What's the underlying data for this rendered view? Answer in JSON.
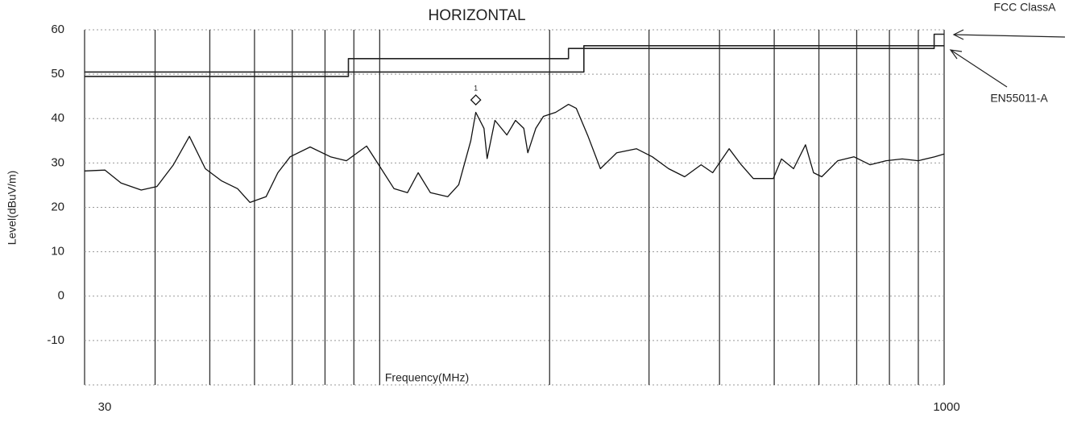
{
  "chart_data": {
    "type": "line",
    "title": "HORIZONTAL",
    "x_label": "Frequency(MHz)",
    "y_label": "Level(dBuV/m)",
    "log_x": true,
    "xlim": [
      30,
      1000
    ],
    "xticks": [
      30,
      1000
    ],
    "xgrid": [
      40,
      50,
      60,
      70,
      80,
      90,
      100,
      200,
      300,
      400,
      500,
      600,
      700,
      800,
      900
    ],
    "ylim": [
      -20,
      60
    ],
    "yticks": [
      -10,
      0,
      10,
      20,
      30,
      40,
      50,
      60
    ],
    "grid": true,
    "series": [
      {
        "name": "FCC ClassA",
        "color": "#222222",
        "x": [
          30,
          88,
          88,
          216,
          216,
          960,
          960,
          1000
        ],
        "values": [
          49.5,
          49.5,
          53.5,
          53.5,
          55.8,
          55.8,
          59,
          59
        ]
      },
      {
        "name": "EN55011-A",
        "color": "#222222",
        "x": [
          30,
          230,
          230,
          1000
        ],
        "values": [
          50.5,
          50.5,
          56.4,
          56.4
        ]
      },
      {
        "color": "#111111",
        "x": [
          30,
          32.6,
          34.8,
          37.8,
          40.3,
          43.1,
          46,
          49.1,
          52.4,
          56,
          58.9,
          62.9,
          66,
          69.4,
          75.3,
          81.8,
          87.3,
          94.8,
          99.6,
          106,
          112,
          117,
          123,
          132,
          138,
          145,
          148,
          153,
          155,
          160,
          168,
          174,
          180,
          183,
          189,
          195,
          205,
          216,
          223,
          234,
          246,
          263,
          285,
          304,
          325,
          347,
          371,
          389,
          416,
          437,
          459,
          498,
          515,
          541,
          568,
          587,
          607,
          648,
          692,
          739,
          789,
          843,
          900,
          962,
          1000
        ],
        "values": [
          28.2,
          28.4,
          25.5,
          23.9,
          24.7,
          29.6,
          36,
          28.7,
          26,
          24.2,
          21.1,
          22.4,
          27.8,
          31.4,
          33.6,
          31.4,
          30.5,
          33.8,
          29.6,
          24.2,
          23.3,
          27.8,
          23.3,
          22.4,
          25.1,
          35,
          41.4,
          37.8,
          31,
          39.6,
          36.3,
          39.6,
          37.8,
          32.3,
          37.8,
          40.5,
          41.4,
          43.2,
          42.3,
          36,
          28.7,
          32.3,
          33.2,
          31.4,
          28.7,
          26.9,
          29.6,
          27.8,
          33.2,
          29.6,
          26.5,
          26.5,
          30.9,
          28.7,
          34.1,
          27.8,
          26.9,
          30.5,
          31.4,
          29.6,
          30.5,
          30.9,
          30.5,
          31.4,
          32
        ]
      }
    ],
    "markers": [
      {
        "label": "1",
        "x": 148,
        "value": 44.2
      }
    ]
  }
}
